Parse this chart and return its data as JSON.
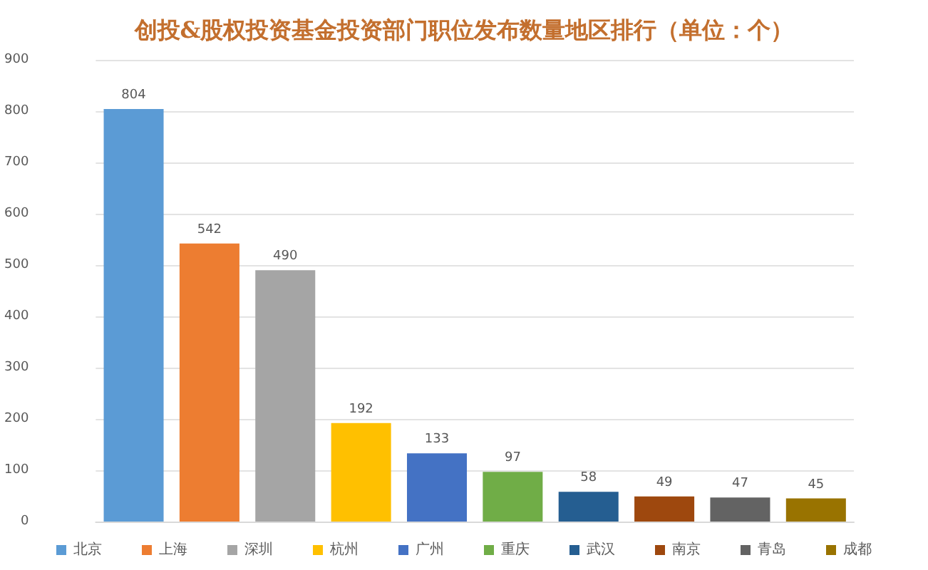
{
  "chart_data": {
    "type": "bar",
    "title": "创投&股权投资基金投资部门职位发布数量地区排行（单位：个）",
    "categories": [
      null,
      null,
      null,
      null,
      null,
      null,
      null,
      null,
      null,
      null
    ],
    "series": [
      {
        "name": "北京",
        "color": "#5b9bd5",
        "values": [
          804,
          null,
          null,
          null,
          null,
          null,
          null,
          null,
          null,
          null
        ]
      },
      {
        "name": "上海",
        "color": "#ed7d31",
        "values": [
          null,
          542,
          null,
          null,
          null,
          null,
          null,
          null,
          null,
          null
        ]
      },
      {
        "name": "深圳",
        "color": "#a5a5a5",
        "values": [
          null,
          null,
          490,
          null,
          null,
          null,
          null,
          null,
          null,
          null
        ]
      },
      {
        "name": "杭州",
        "color": "#ffc000",
        "values": [
          null,
          null,
          null,
          192,
          null,
          null,
          null,
          null,
          null,
          null
        ]
      },
      {
        "name": "广州",
        "color": "#4472c4",
        "values": [
          null,
          null,
          null,
          null,
          133,
          null,
          null,
          null,
          null,
          null
        ]
      },
      {
        "name": "重庆",
        "color": "#70ad47",
        "values": [
          null,
          null,
          null,
          null,
          null,
          97,
          null,
          null,
          null,
          null
        ]
      },
      {
        "name": "武汉",
        "color": "#255e91",
        "values": [
          null,
          null,
          null,
          null,
          null,
          null,
          58,
          null,
          null,
          null
        ]
      },
      {
        "name": "南京",
        "color": "#9e480e",
        "values": [
          null,
          null,
          null,
          null,
          null,
          null,
          null,
          49,
          null,
          null
        ]
      },
      {
        "name": "青岛",
        "color": "#636363",
        "values": [
          null,
          null,
          null,
          null,
          null,
          null,
          null,
          null,
          47,
          null
        ]
      },
      {
        "name": "成都",
        "color": "#997300",
        "values": [
          null,
          null,
          null,
          null,
          null,
          null,
          null,
          null,
          null,
          45
        ]
      }
    ],
    "stacked": true,
    "ylim": [
      0,
      900
    ],
    "yticks": [
      0,
      100,
      200,
      300,
      400,
      500,
      600,
      700,
      800,
      900
    ],
    "grid": "y",
    "legend": "bottom",
    "data_labels": true,
    "tick_labels": "y"
  }
}
